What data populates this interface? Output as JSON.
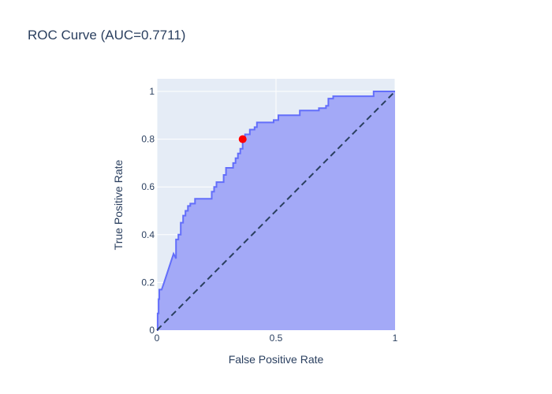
{
  "chart_data": {
    "type": "area",
    "title": "ROC Curve (AUC=0.7711)",
    "xlabel": "False Positive Rate",
    "ylabel": "True Positive Rate",
    "xlim": [
      0,
      1
    ],
    "ylim": [
      0,
      1
    ],
    "x_ticks": [
      0,
      0.5,
      1
    ],
    "x_tick_labels": [
      "0",
      "0.5",
      "1"
    ],
    "y_ticks": [
      0,
      0.2,
      0.4,
      0.6,
      0.8,
      1
    ],
    "y_tick_labels": [
      "0",
      "0.2",
      "0.4",
      "0.6",
      "0.8",
      "1"
    ],
    "grid": true,
    "series": [
      {
        "style": "filled-step-line",
        "color": "#636efa",
        "fill_color": "#a3a9f7",
        "x": [
          0,
          0.003,
          0.003,
          0.007,
          0.007,
          0.01,
          0.01,
          0.02,
          0.03,
          0.04,
          0.05,
          0.06,
          0.07,
          0.08,
          0.08,
          0.09,
          0.09,
          0.1,
          0.1,
          0.11,
          0.11,
          0.12,
          0.12,
          0.13,
          0.13,
          0.14,
          0.14,
          0.16,
          0.16,
          0.17,
          0.17,
          0.23,
          0.23,
          0.24,
          0.24,
          0.25,
          0.25,
          0.28,
          0.28,
          0.29,
          0.29,
          0.32,
          0.32,
          0.33,
          0.33,
          0.34,
          0.34,
          0.35,
          0.35,
          0.36,
          0.36,
          0.37,
          0.37,
          0.39,
          0.39,
          0.41,
          0.41,
          0.42,
          0.42,
          0.43,
          0.43,
          0.49,
          0.49,
          0.51,
          0.51,
          0.6,
          0.6,
          0.68,
          0.68,
          0.71,
          0.71,
          0.72,
          0.72,
          0.74,
          0.74,
          0.91,
          0.91,
          1.0
        ],
        "y": [
          0,
          0,
          0.07,
          0.07,
          0.13,
          0.13,
          0.17,
          0.17,
          0.2,
          0.23,
          0.26,
          0.29,
          0.32,
          0.3,
          0.38,
          0.38,
          0.4,
          0.4,
          0.45,
          0.45,
          0.48,
          0.48,
          0.5,
          0.5,
          0.52,
          0.52,
          0.53,
          0.53,
          0.55,
          0.55,
          0.55,
          0.55,
          0.58,
          0.58,
          0.6,
          0.6,
          0.62,
          0.62,
          0.65,
          0.65,
          0.68,
          0.68,
          0.7,
          0.7,
          0.72,
          0.72,
          0.74,
          0.74,
          0.76,
          0.76,
          0.8,
          0.8,
          0.82,
          0.82,
          0.84,
          0.84,
          0.85,
          0.85,
          0.87,
          0.87,
          0.87,
          0.87,
          0.88,
          0.88,
          0.9,
          0.9,
          0.92,
          0.92,
          0.93,
          0.93,
          0.94,
          0.94,
          0.97,
          0.97,
          0.98,
          0.98,
          1.0,
          1.0
        ]
      },
      {
        "style": "dashed-line",
        "color": "#2a3f5f",
        "x": [
          0,
          1
        ],
        "y": [
          0,
          1
        ]
      }
    ],
    "highlight_point": {
      "x": 0.36,
      "y": 0.8,
      "color": "#ff0000"
    },
    "colors": {
      "plot_bg": "#e5ecf6",
      "grid": "#ffffff",
      "text": "#2a3f5f"
    }
  }
}
